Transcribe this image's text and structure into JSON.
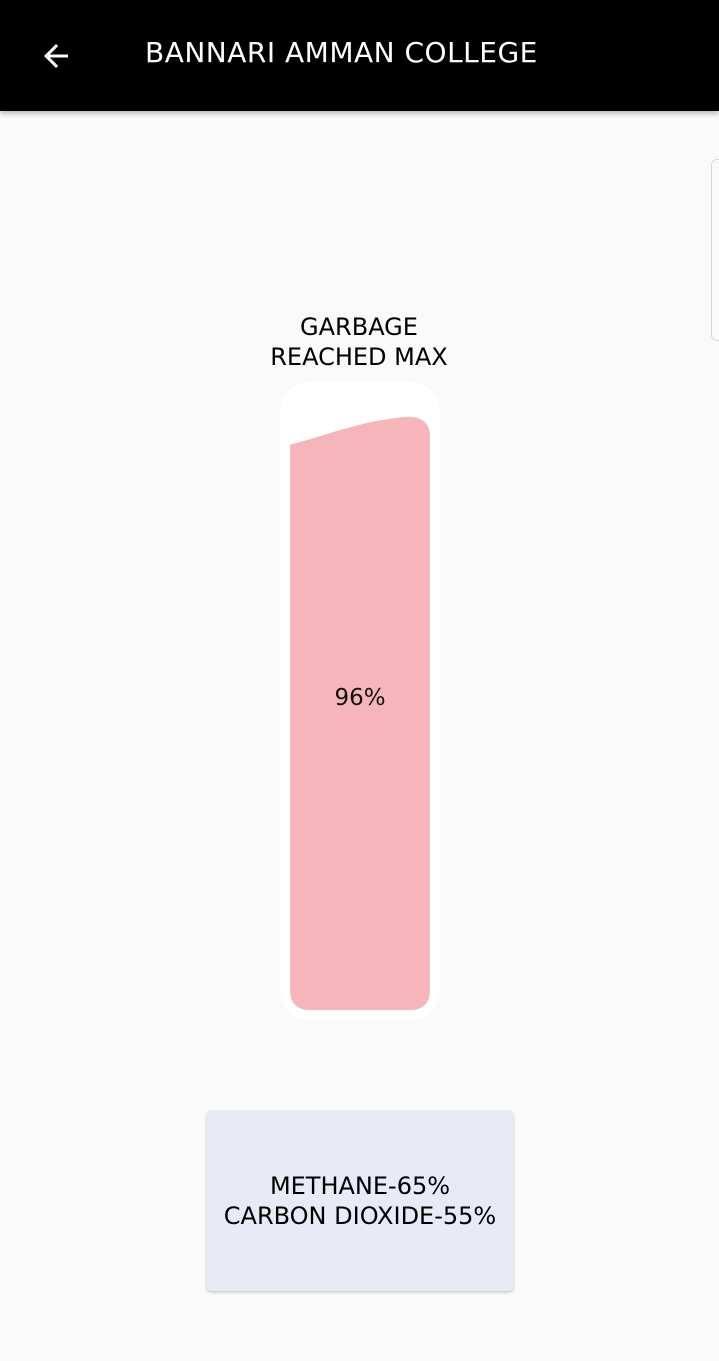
{
  "app_bar": {
    "title": "BANNARI AMMAN COLLEGE",
    "back_icon": "arrow-left-icon",
    "background": "#000000"
  },
  "garbage": {
    "status_line1": "GARBAGE",
    "status_line2": "REACHED MAX",
    "fill_percent_label": "96%",
    "fill_level": 0.96,
    "fill_color": "#f6b5bb"
  },
  "gases": {
    "methane": "METHANE-65%",
    "carbon_dioxide": "CARBON DIOXIDE-55%",
    "card_color": "#e8eaf6"
  }
}
